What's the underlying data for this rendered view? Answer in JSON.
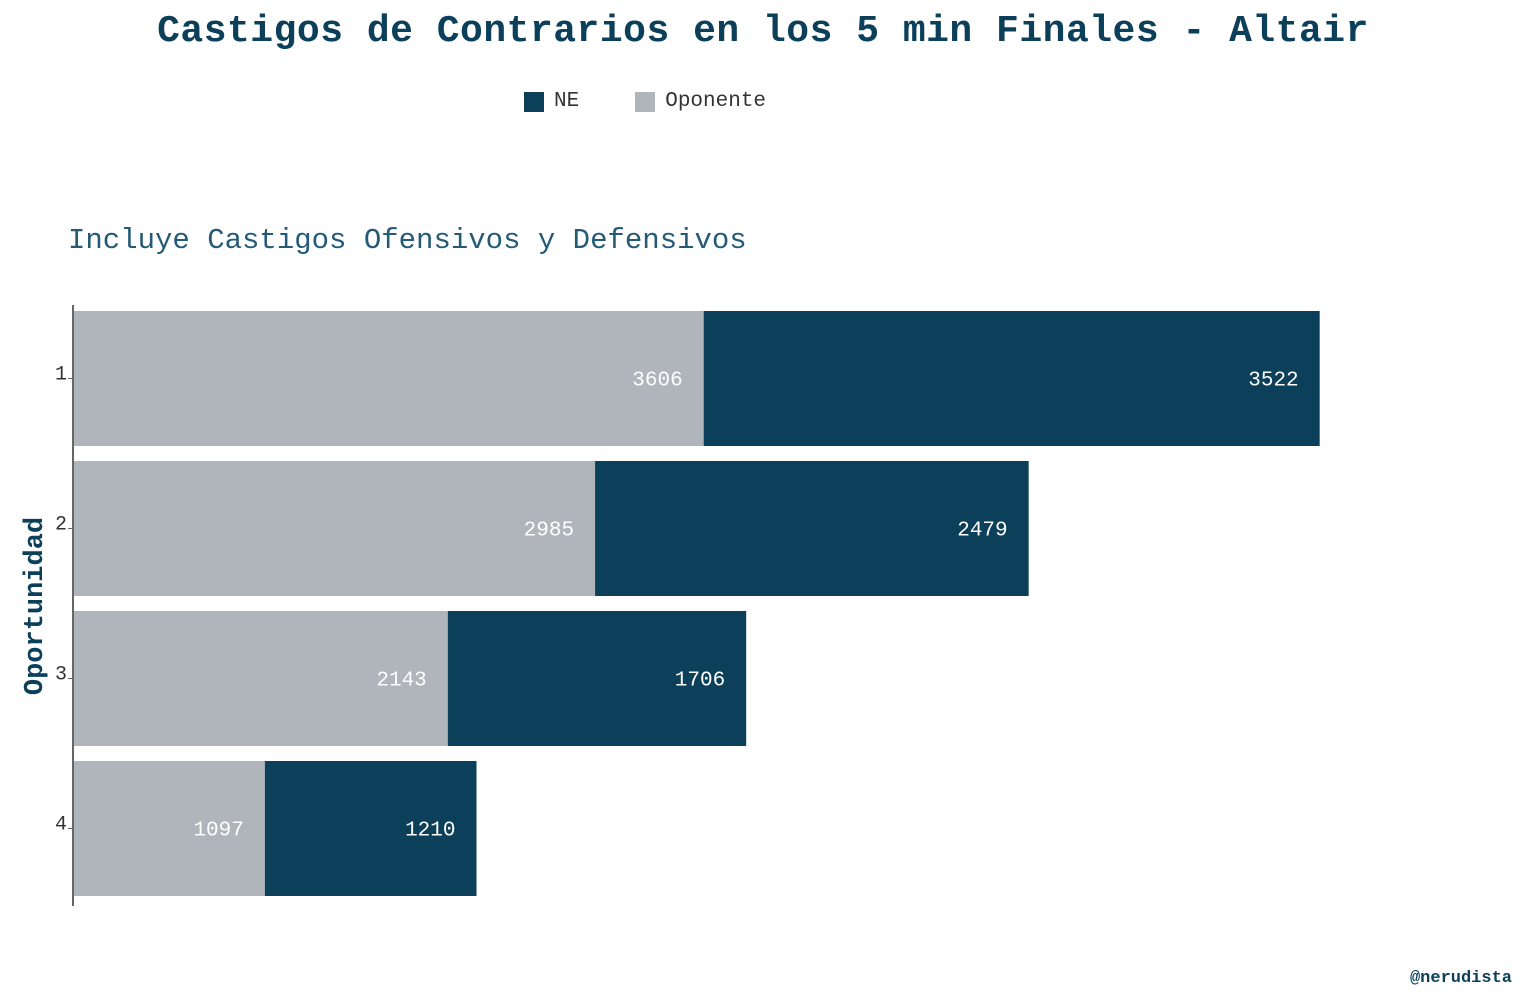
{
  "title": "Castigos de Contrarios en los 5 min Finales - Altair",
  "subtitle": "Incluye Castigos Ofensivos y Defensivos",
  "watermark": "@nerudista",
  "colors": {
    "NE": "#0b3f5a",
    "Oponente": "#afb5ba",
    "title": "#0b3f5a",
    "subtitle": "#245a78"
  },
  "chart_data": {
    "type": "bar",
    "orientation": "horizontal",
    "stacked": true,
    "categories": [
      "1",
      "2",
      "3",
      "4"
    ],
    "ylabel": "Oportunidad",
    "xlabel": "",
    "legend_position": "top",
    "grid": false,
    "series": [
      {
        "name": "Oponente",
        "values": [
          3606,
          2985,
          2143,
          1097
        ]
      },
      {
        "name": "NE",
        "values": [
          3522,
          2479,
          1706,
          1210
        ]
      }
    ]
  }
}
